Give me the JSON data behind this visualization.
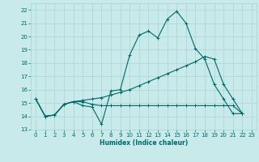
{
  "title": "",
  "xlabel": "Humidex (Indice chaleur)",
  "ylabel": "",
  "bg_color": "#c8eaea",
  "grid_color": "#b0d8d8",
  "line_color": "#006868",
  "xlim": [
    -0.5,
    23.5
  ],
  "ylim": [
    13,
    22.5
  ],
  "yticks": [
    13,
    14,
    15,
    16,
    17,
    18,
    19,
    20,
    21,
    22
  ],
  "xticks": [
    0,
    1,
    2,
    3,
    4,
    5,
    6,
    7,
    8,
    9,
    10,
    11,
    12,
    13,
    14,
    15,
    16,
    17,
    18,
    19,
    20,
    21,
    22,
    23
  ],
  "line1_x": [
    0,
    1,
    2,
    3,
    4,
    5,
    6,
    7,
    8,
    9,
    10,
    11,
    12,
    13,
    14,
    15,
    16,
    17,
    18,
    19,
    20,
    21,
    22
  ],
  "line1_y": [
    15.3,
    14.0,
    14.1,
    14.9,
    15.1,
    14.8,
    14.7,
    13.4,
    15.9,
    16.0,
    18.6,
    20.1,
    20.4,
    19.9,
    21.3,
    21.9,
    21.0,
    19.1,
    18.3,
    16.4,
    15.3,
    14.2,
    14.2
  ],
  "line2_x": [
    0,
    1,
    2,
    3,
    4,
    5,
    6,
    7,
    8,
    9,
    10,
    11,
    12,
    13,
    14,
    15,
    16,
    17,
    18,
    19,
    20,
    21,
    22
  ],
  "line2_y": [
    15.3,
    14.0,
    14.1,
    14.9,
    15.1,
    15.1,
    14.9,
    14.8,
    14.8,
    14.8,
    14.8,
    14.8,
    14.8,
    14.8,
    14.8,
    14.8,
    14.8,
    14.8,
    14.8,
    14.8,
    14.8,
    14.8,
    14.2
  ],
  "line3_x": [
    0,
    1,
    2,
    3,
    4,
    5,
    6,
    7,
    8,
    9,
    10,
    11,
    12,
    13,
    14,
    15,
    16,
    17,
    18,
    19,
    20,
    21,
    22
  ],
  "line3_y": [
    15.3,
    14.0,
    14.1,
    14.9,
    15.1,
    15.2,
    15.3,
    15.4,
    15.6,
    15.8,
    16.0,
    16.3,
    16.6,
    16.9,
    17.2,
    17.5,
    17.8,
    18.1,
    18.5,
    18.3,
    16.4,
    15.3,
    14.2
  ]
}
